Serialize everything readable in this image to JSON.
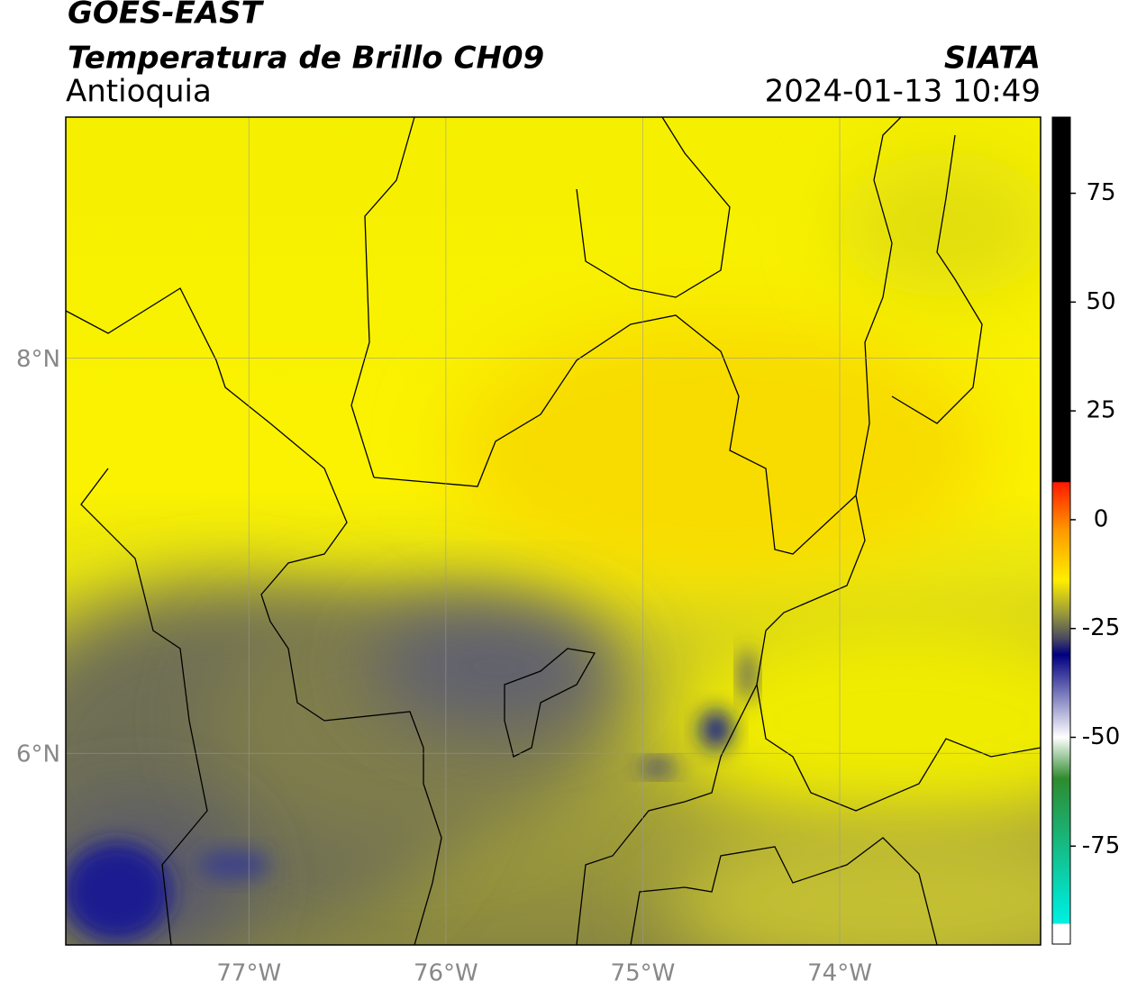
{
  "chart_data": {
    "type": "contourf",
    "title": "GOES-EAST",
    "subtitle": "Temperatura de Brillo CH09",
    "region": "Antioquia",
    "source": "SIATA",
    "timestamp": "2024-01-13 10:49",
    "xlim": [
      -77.93,
      -72.98
    ],
    "xticks": [
      {
        "value": -77,
        "label": "77°W"
      },
      {
        "value": -76,
        "label": "76°W"
      },
      {
        "value": -75,
        "label": "75°W"
      },
      {
        "value": -74,
        "label": "74°W"
      }
    ],
    "ylim": [
      5.03,
      9.22
    ],
    "yticks": [
      {
        "value": 6,
        "label": "6°N"
      },
      {
        "value": 8,
        "label": "8°N"
      }
    ],
    "grid": true,
    "clim": [
      -97.5,
      92.5
    ],
    "cticks": [
      75,
      50,
      25,
      0,
      -25,
      -50,
      -75
    ]
  }
}
